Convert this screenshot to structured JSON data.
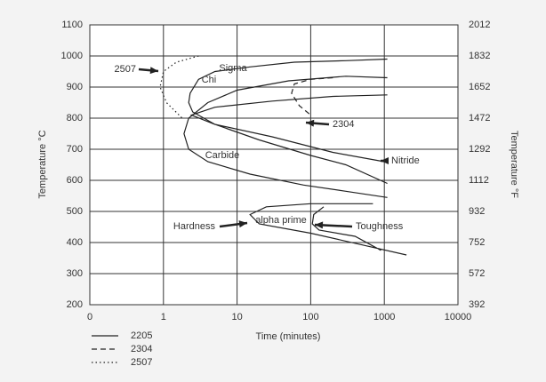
{
  "chart_data": {
    "type": "line",
    "xlabel": "Time (minutes)",
    "ylabel": "Temperature °C",
    "y2label": "Temperature °F",
    "xscale": "log",
    "grid": true,
    "xlim": [
      0.1,
      10000
    ],
    "xticks": [
      {
        "value": 0.1,
        "label": "0"
      },
      1,
      10,
      100,
      1000,
      10000
    ],
    "ylim": [
      200,
      1100
    ],
    "yticks": [
      200,
      300,
      400,
      500,
      600,
      700,
      800,
      900,
      1000,
      1100
    ],
    "y2lim": [
      392,
      2012
    ],
    "y2ticks": [
      392,
      572,
      752,
      932,
      1112,
      1292,
      1472,
      1652,
      1832,
      2012
    ],
    "series": [
      {
        "name": "2205",
        "color": "#222222",
        "dash": "solid",
        "x": [
          1100,
          300,
          60,
          15,
          5,
          3,
          2.3,
          2.2,
          2.5,
          5,
          20,
          100,
          300,
          1100,
          null,
          1100,
          300,
          50,
          10,
          4,
          2.2,
          1.9,
          2.2,
          4,
          15,
          80,
          300,
          1100,
          null,
          1100,
          200,
          30,
          5,
          2.4,
          5,
          30,
          200,
          1000,
          null,
          700,
          100,
          25,
          15,
          20,
          100,
          2000,
          null,
          150,
          110,
          105,
          130,
          400,
          900
        ],
        "y": [
          990,
          985,
          980,
          965,
          950,
          925,
          880,
          850,
          820,
          780,
          730,
          680,
          650,
          590,
          null,
          930,
          935,
          920,
          890,
          850,
          800,
          750,
          700,
          660,
          620,
          585,
          565,
          545,
          null,
          875,
          870,
          855,
          835,
          810,
          780,
          740,
          690,
          660,
          null,
          525,
          525,
          515,
          490,
          460,
          430,
          360,
          null,
          515,
          490,
          460,
          440,
          420,
          375
        ]
      },
      {
        "name": "2304",
        "color": "#222222",
        "dash": "dashed",
        "x": [
          200,
          100,
          60,
          55,
          70,
          100
        ],
        "y": [
          930,
          925,
          910,
          880,
          840,
          810
        ]
      },
      {
        "name": "2507",
        "color": "#222222",
        "dash": "dotted",
        "x": [
          3,
          1.5,
          1,
          0.9,
          1.1,
          1.8
        ],
        "y": [
          1000,
          980,
          950,
          900,
          850,
          800
        ]
      }
    ],
    "annotations": [
      "Sigma",
      "Chi",
      "2507",
      "2304",
      "Carbide",
      "Nitride",
      "Hardness",
      "alpha prime",
      "Toughness"
    ]
  }
}
